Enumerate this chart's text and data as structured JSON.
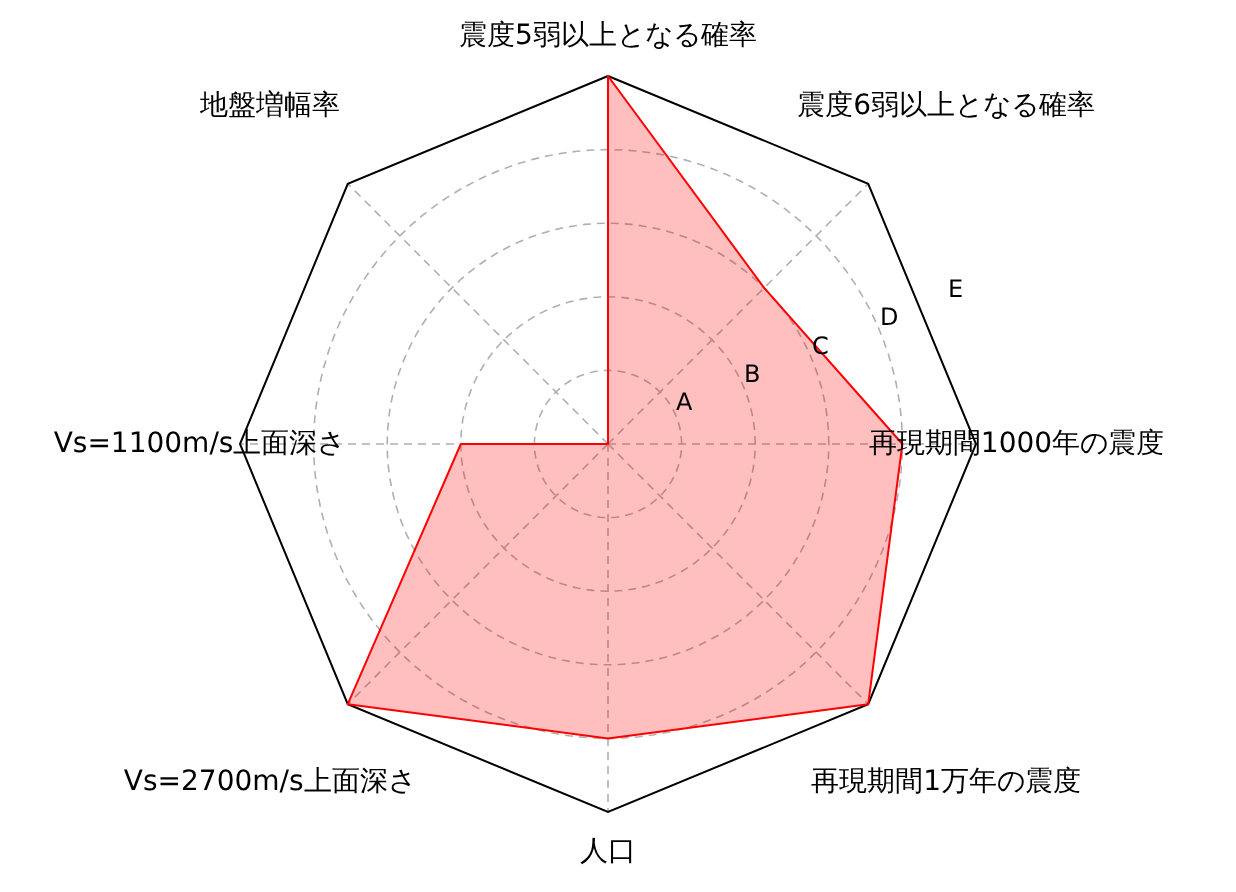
{
  "chart_data": {
    "type": "radar",
    "categories": [
      "震度5弱以上となる確率",
      "震度6弱以上となる確率",
      "再現期間1000年の震度",
      "再現期間1万年の震度",
      "人口",
      "Vs=2700m/s上面深さ",
      "Vs=1100m/s上面深さ",
      "地盤増幅率"
    ],
    "series": [
      {
        "color": "#ff0000",
        "values": [
          5,
          3,
          4,
          5,
          4,
          5,
          2,
          0
        ]
      }
    ],
    "ylim": [
      0,
      5
    ],
    "yticks": [
      {
        "value": 1,
        "label": "A"
      },
      {
        "value": 2,
        "label": "B"
      },
      {
        "value": 3,
        "label": "C"
      },
      {
        "value": 4,
        "label": "D"
      },
      {
        "value": 5,
        "label": "E"
      }
    ],
    "grid": true
  }
}
